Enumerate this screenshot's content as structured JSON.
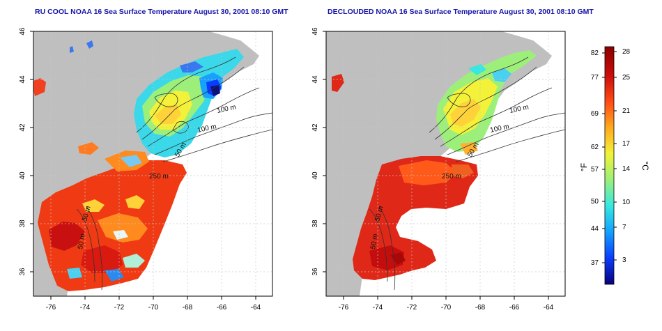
{
  "left_panel": {
    "title": "RU COOL NOAA 16 Sea Surface Temperature August 30, 2001 08:10 GMT"
  },
  "right_panel": {
    "title": "DECLOUDED NOAA 16 Sea Surface Temperature August 30, 2001 08:10 GMT"
  },
  "map_axes": {
    "x_ticks": [
      "-76",
      "-74",
      "-72",
      "-70",
      "-68",
      "-66",
      "-64"
    ],
    "y_ticks": [
      "46",
      "44",
      "42",
      "40",
      "38",
      "36"
    ],
    "lon_range": [
      -77.3,
      -63.2
    ],
    "lat_range": [
      35.0,
      46.0
    ]
  },
  "bathymetry_labels": [
    "100 m",
    "100 m",
    "50 m",
    "250 m",
    "50 m",
    "50 m"
  ],
  "colorbar": {
    "fahrenheit_unit": "°F",
    "celsius_unit": "°C",
    "fahrenheit_ticks": [
      "82",
      "77",
      "69",
      "62",
      "57",
      "50",
      "44",
      "37"
    ],
    "celsius_ticks": [
      "28",
      "25",
      "21",
      "17",
      "14",
      "10",
      "7",
      "3"
    ],
    "celsius_range": [
      0,
      29
    ],
    "colors": [
      "#08007a",
      "#0a3cff",
      "#12a0ff",
      "#36e8e0",
      "#9cf07a",
      "#f3f238",
      "#ffa91e",
      "#ff4a12",
      "#cc0c0c",
      "#8a0000"
    ]
  },
  "colors": {
    "land": "#bfbfbf",
    "grid": "#c8c8c8",
    "contour": "#333333",
    "title": "#1414a8"
  }
}
